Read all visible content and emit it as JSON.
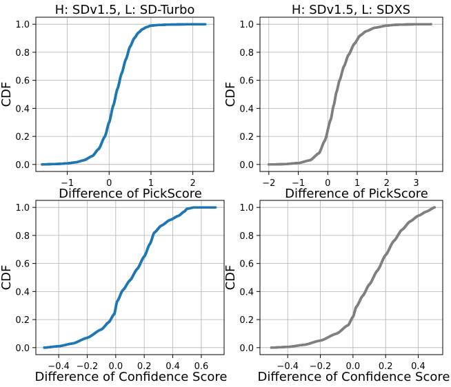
{
  "chart_data": [
    {
      "type": "scatter",
      "title": "H: SDv1.5, L: SD-Turbo",
      "xlabel": "Difference of PickScore",
      "ylabel": "CDF",
      "xlim": [
        -1.75,
        2.5
      ],
      "ylim": [
        -0.05,
        1.05
      ],
      "xticks": [
        -1,
        0,
        1,
        2
      ],
      "xtick_labels": [
        "−1",
        "0",
        "1",
        "2"
      ],
      "yticks": [
        0.0,
        0.2,
        0.4,
        0.6,
        0.8,
        1.0
      ],
      "ytick_labels": [
        "0.0",
        "0.2",
        "0.4",
        "0.6",
        "0.8",
        "1.0"
      ],
      "grid": true,
      "color": "#1f77b4",
      "series": [
        {
          "name": "CDF",
          "points": [
            [
              -1.6,
              0.0
            ],
            [
              -1.4,
              0.002
            ],
            [
              -1.2,
              0.004
            ],
            [
              -1.0,
              0.008
            ],
            [
              -0.8,
              0.015
            ],
            [
              -0.6,
              0.03
            ],
            [
              -0.4,
              0.06
            ],
            [
              -0.25,
              0.11
            ],
            [
              -0.1,
              0.2
            ],
            [
              0.0,
              0.3
            ],
            [
              0.1,
              0.42
            ],
            [
              0.2,
              0.54
            ],
            [
              0.3,
              0.65
            ],
            [
              0.4,
              0.75
            ],
            [
              0.5,
              0.84
            ],
            [
              0.6,
              0.9
            ],
            [
              0.7,
              0.94
            ],
            [
              0.8,
              0.965
            ],
            [
              0.9,
              0.98
            ],
            [
              1.0,
              0.99
            ],
            [
              1.2,
              0.995
            ],
            [
              1.5,
              0.998
            ],
            [
              1.8,
              0.999
            ],
            [
              2.0,
              1.0
            ],
            [
              2.3,
              1.0
            ]
          ],
          "min_x": -1.6,
          "max_x": 2.3
        }
      ]
    },
    {
      "type": "scatter",
      "title": "H: SDv1.5, L: SDXS",
      "xlabel": "Difference of PickScore",
      "ylabel": "CDF",
      "xlim": [
        -2.3,
        3.9
      ],
      "ylim": [
        -0.05,
        1.05
      ],
      "xticks": [
        -2,
        -1,
        0,
        1,
        2,
        3
      ],
      "xtick_labels": [
        "−2",
        "−1",
        "0",
        "1",
        "2",
        "3"
      ],
      "yticks": [
        0.0,
        0.2,
        0.4,
        0.6,
        0.8,
        1.0
      ],
      "ytick_labels": [
        "0.0",
        "0.2",
        "0.4",
        "0.6",
        "0.8",
        "1.0"
      ],
      "grid": true,
      "color": "#7f7f7f",
      "series": [
        {
          "name": "CDF",
          "points": [
            [
              -2.0,
              0.0
            ],
            [
              -1.5,
              0.002
            ],
            [
              -1.0,
              0.01
            ],
            [
              -0.6,
              0.03
            ],
            [
              -0.3,
              0.08
            ],
            [
              -0.1,
              0.17
            ],
            [
              0.1,
              0.32
            ],
            [
              0.2,
              0.42
            ],
            [
              0.3,
              0.52
            ],
            [
              0.4,
              0.6
            ],
            [
              0.55,
              0.7
            ],
            [
              0.7,
              0.78
            ],
            [
              0.9,
              0.86
            ],
            [
              1.1,
              0.92
            ],
            [
              1.3,
              0.95
            ],
            [
              1.6,
              0.975
            ],
            [
              2.0,
              0.99
            ],
            [
              2.3,
              0.996
            ],
            [
              2.8,
              0.999
            ],
            [
              3.5,
              1.0
            ]
          ],
          "min_x": -2.0,
          "max_x": 3.5
        }
      ]
    },
    {
      "type": "scatter",
      "title": "",
      "xlabel": "Difference of Confidence Score",
      "ylabel": "CDF",
      "xlim": [
        -0.56,
        0.76
      ],
      "ylim": [
        -0.05,
        1.05
      ],
      "xticks": [
        -0.4,
        -0.2,
        0.0,
        0.2,
        0.4,
        0.6
      ],
      "xtick_labels": [
        "−0.4",
        "−0.2",
        "0.0",
        "0.2",
        "0.4",
        "0.6"
      ],
      "yticks": [
        0.0,
        0.2,
        0.4,
        0.6,
        0.8,
        1.0
      ],
      "ytick_labels": [
        "0.0",
        "0.2",
        "0.4",
        "0.6",
        "0.8",
        "1.0"
      ],
      "grid": true,
      "color": "#1f77b4",
      "series": [
        {
          "name": "CDF",
          "points": [
            [
              -0.5,
              0.0
            ],
            [
              -0.4,
              0.01
            ],
            [
              -0.3,
              0.03
            ],
            [
              -0.2,
              0.07
            ],
            [
              -0.1,
              0.13
            ],
            [
              -0.05,
              0.18
            ],
            [
              -0.01,
              0.24
            ],
            [
              0.01,
              0.33
            ],
            [
              0.05,
              0.41
            ],
            [
              0.1,
              0.48
            ],
            [
              0.15,
              0.56
            ],
            [
              0.2,
              0.65
            ],
            [
              0.24,
              0.74
            ],
            [
              0.27,
              0.82
            ],
            [
              0.32,
              0.87
            ],
            [
              0.38,
              0.91
            ],
            [
              0.44,
              0.94
            ],
            [
              0.48,
              0.97
            ],
            [
              0.5,
              0.99
            ],
            [
              0.55,
              1.0
            ],
            [
              0.6,
              1.0
            ],
            [
              0.7,
              1.0
            ]
          ],
          "min_x": -0.5,
          "max_x": 0.7
        }
      ]
    },
    {
      "type": "scatter",
      "title": "",
      "xlabel": "Difference of Confidence Score",
      "ylabel": "CDF",
      "xlim": [
        -0.57,
        0.55
      ],
      "ylim": [
        -0.05,
        1.05
      ],
      "xticks": [
        -0.4,
        -0.2,
        0.0,
        0.2,
        0.4
      ],
      "xtick_labels": [
        "−0.4",
        "−0.2",
        "0.0",
        "0.2",
        "0.4"
      ],
      "yticks": [
        0.0,
        0.2,
        0.4,
        0.6,
        0.8,
        1.0
      ],
      "ytick_labels": [
        "0.0",
        "0.2",
        "0.4",
        "0.6",
        "0.8",
        "1.0"
      ],
      "grid": true,
      "color": "#7f7f7f",
      "series": [
        {
          "name": "CDF",
          "points": [
            [
              -0.5,
              0.0
            ],
            [
              -0.4,
              0.005
            ],
            [
              -0.3,
              0.02
            ],
            [
              -0.2,
              0.05
            ],
            [
              -0.1,
              0.1
            ],
            [
              -0.03,
              0.16
            ],
            [
              0.0,
              0.22
            ],
            [
              0.02,
              0.29
            ],
            [
              0.06,
              0.37
            ],
            [
              0.1,
              0.45
            ],
            [
              0.15,
              0.55
            ],
            [
              0.2,
              0.66
            ],
            [
              0.25,
              0.76
            ],
            [
              0.3,
              0.84
            ],
            [
              0.35,
              0.9
            ],
            [
              0.4,
              0.94
            ],
            [
              0.45,
              0.97
            ],
            [
              0.5,
              1.0
            ]
          ],
          "min_x": -0.5,
          "max_x": 0.5
        }
      ]
    }
  ]
}
